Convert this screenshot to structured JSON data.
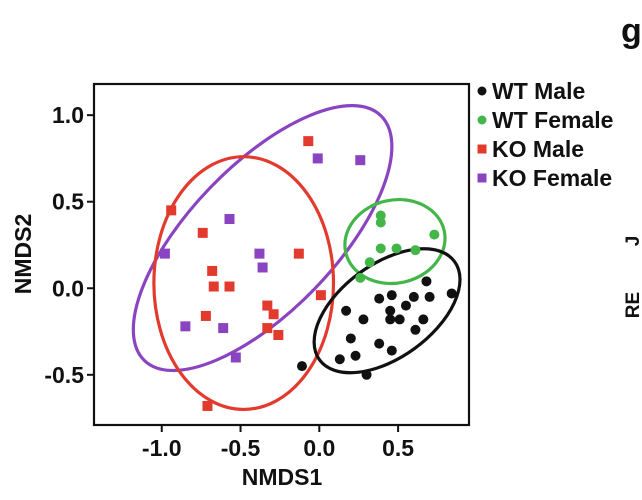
{
  "panel_letter": "g",
  "cut_off_text": [
    "J",
    "RE"
  ],
  "chart_data": {
    "type": "scatter",
    "title": "",
    "xlabel": "NMDS1",
    "ylabel": "NMDS2",
    "xlim": [
      -1.43,
      0.95
    ],
    "ylim": [
      -0.79,
      1.18
    ],
    "xticks": [
      -1.0,
      -0.5,
      0.0,
      0.5
    ],
    "xtick_labels": [
      "-1.0",
      "-0.5",
      "0.0",
      "0.5"
    ],
    "yticks": [
      1.0,
      0.5,
      0.0,
      -0.5
    ],
    "ytick_labels": [
      "1.0",
      "0.5",
      "0.0",
      "-0.5"
    ],
    "grid": false,
    "legend_position": "outside-top-right",
    "series": [
      {
        "name": "WT Male",
        "color": "#111111",
        "marker": "circle",
        "points": [
          [
            0.68,
            0.04
          ],
          [
            0.84,
            -0.03
          ],
          [
            0.46,
            -0.04
          ],
          [
            0.6,
            -0.05
          ],
          [
            0.7,
            -0.05
          ],
          [
            0.38,
            -0.06
          ],
          [
            0.55,
            -0.1
          ],
          [
            0.17,
            -0.13
          ],
          [
            0.45,
            -0.13
          ],
          [
            0.28,
            -0.18
          ],
          [
            0.45,
            -0.18
          ],
          [
            0.51,
            -0.18
          ],
          [
            0.66,
            -0.18
          ],
          [
            0.61,
            -0.24
          ],
          [
            0.2,
            -0.29
          ],
          [
            0.38,
            -0.32
          ],
          [
            0.46,
            -0.36
          ],
          [
            0.23,
            -0.39
          ],
          [
            0.13,
            -0.41
          ],
          [
            -0.11,
            -0.45
          ],
          [
            0.3,
            -0.5
          ]
        ]
      },
      {
        "name": "WT Female",
        "color": "#44b649",
        "marker": "circle",
        "points": [
          [
            0.39,
            0.42
          ],
          [
            0.39,
            0.38
          ],
          [
            0.73,
            0.31
          ],
          [
            0.39,
            0.23
          ],
          [
            0.49,
            0.23
          ],
          [
            0.61,
            0.22
          ],
          [
            0.32,
            0.15
          ],
          [
            0.26,
            0.06
          ]
        ]
      },
      {
        "name": "KO Male",
        "color": "#e23b2e",
        "marker": "square",
        "points": [
          [
            -0.07,
            0.85
          ],
          [
            -0.94,
            0.45
          ],
          [
            -0.74,
            0.32
          ],
          [
            -0.13,
            0.2
          ],
          [
            -0.68,
            0.1
          ],
          [
            -0.67,
            0.01
          ],
          [
            -0.57,
            0.01
          ],
          [
            0.01,
            -0.04
          ],
          [
            -0.33,
            -0.1
          ],
          [
            -0.29,
            -0.15
          ],
          [
            -0.72,
            -0.16
          ],
          [
            -0.33,
            -0.23
          ],
          [
            -0.26,
            -0.27
          ],
          [
            -0.71,
            -0.68
          ]
        ]
      },
      {
        "name": "KO Female",
        "color": "#8b44c1",
        "marker": "square",
        "points": [
          [
            -0.01,
            0.75
          ],
          [
            0.26,
            0.74
          ],
          [
            -0.57,
            0.4
          ],
          [
            -0.98,
            0.2
          ],
          [
            -0.38,
            0.2
          ],
          [
            -0.36,
            0.12
          ],
          [
            -0.85,
            -0.22
          ],
          [
            -0.61,
            -0.23
          ],
          [
            -0.53,
            -0.4
          ]
        ]
      }
    ],
    "ellipses": [
      {
        "group": "KO Female",
        "color": "#8b44c1",
        "cx": -0.36,
        "cy": 0.29,
        "rx": 1.08,
        "ry": 0.42,
        "angle_deg": 46
      },
      {
        "group": "KO Male",
        "color": "#e23b2e",
        "cx": -0.48,
        "cy": 0.03,
        "rx": 0.57,
        "ry": 0.73,
        "angle_deg": 0
      },
      {
        "group": "WT Female",
        "color": "#44b649",
        "cx": 0.48,
        "cy": 0.27,
        "rx": 0.32,
        "ry": 0.24,
        "angle_deg": 12
      },
      {
        "group": "WT Male",
        "color": "#111111",
        "cx": 0.43,
        "cy": -0.13,
        "rx": 0.53,
        "ry": 0.27,
        "angle_deg": 36
      }
    ]
  }
}
